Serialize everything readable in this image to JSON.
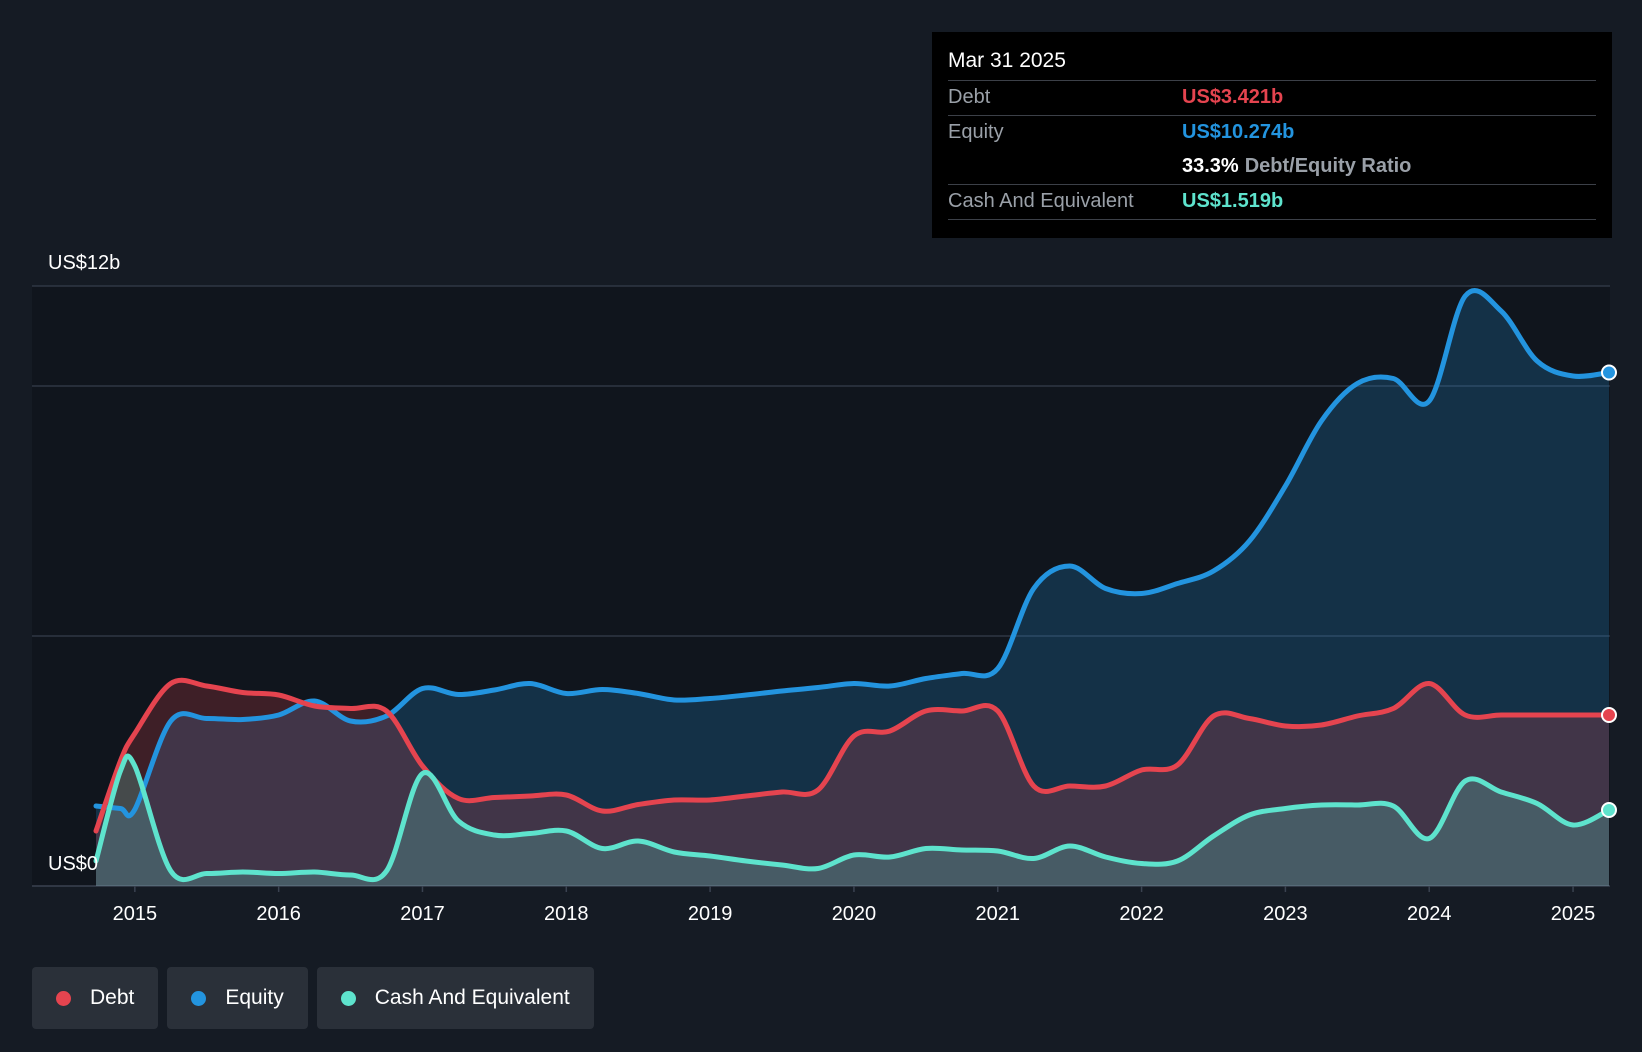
{
  "tooltip": {
    "date": "Mar 31 2025",
    "debt_label": "Debt",
    "debt_value": "US$3.421b",
    "equity_label": "Equity",
    "equity_value": "US$10.274b",
    "ratio_pct": "33.3%",
    "ratio_label": "Debt/Equity Ratio",
    "cash_label": "Cash And Equivalent",
    "cash_value": "US$1.519b"
  },
  "legend": {
    "debt": "Debt",
    "equity": "Equity",
    "cash": "Cash And Equivalent"
  },
  "colors": {
    "debt": "#e5444f",
    "equity": "#2394df",
    "cash": "#5ee3cd",
    "background": "#151b24"
  },
  "chart_data": {
    "type": "area",
    "title": "",
    "ylabel_top": "US$12b",
    "ylabel_bottom": "US$0",
    "ylim": [
      0,
      12
    ],
    "xlim": [
      2014.73,
      2025.25
    ],
    "x_ticks": [
      2015,
      2016,
      2017,
      2018,
      2019,
      2020,
      2021,
      2022,
      2023,
      2024,
      2025
    ],
    "x_tick_labels": [
      "2015",
      "2016",
      "2017",
      "2018",
      "2019",
      "2020",
      "2021",
      "2022",
      "2023",
      "2024",
      "2025"
    ],
    "gridlines": [
      0,
      5,
      10,
      12
    ],
    "series": [
      {
        "name": "Equity",
        "key": "equity",
        "points": [
          [
            2014.73,
            1.6
          ],
          [
            2014.9,
            1.55
          ],
          [
            2015.0,
            1.53
          ],
          [
            2015.25,
            3.3
          ],
          [
            2015.5,
            3.35
          ],
          [
            2015.75,
            3.33
          ],
          [
            2016.0,
            3.42
          ],
          [
            2016.25,
            3.7
          ],
          [
            2016.5,
            3.3
          ],
          [
            2016.75,
            3.4
          ],
          [
            2017.0,
            3.95
          ],
          [
            2017.25,
            3.83
          ],
          [
            2017.5,
            3.92
          ],
          [
            2017.75,
            4.05
          ],
          [
            2018.0,
            3.85
          ],
          [
            2018.25,
            3.93
          ],
          [
            2018.5,
            3.85
          ],
          [
            2018.75,
            3.72
          ],
          [
            2019.0,
            3.75
          ],
          [
            2019.25,
            3.82
          ],
          [
            2019.5,
            3.9
          ],
          [
            2019.75,
            3.97
          ],
          [
            2020.0,
            4.05
          ],
          [
            2020.25,
            4.0
          ],
          [
            2020.5,
            4.15
          ],
          [
            2020.75,
            4.25
          ],
          [
            2021.0,
            4.35
          ],
          [
            2021.25,
            5.95
          ],
          [
            2021.5,
            6.4
          ],
          [
            2021.75,
            5.95
          ],
          [
            2022.0,
            5.85
          ],
          [
            2022.25,
            6.05
          ],
          [
            2022.5,
            6.3
          ],
          [
            2022.75,
            6.9
          ],
          [
            2023.0,
            8.0
          ],
          [
            2023.25,
            9.3
          ],
          [
            2023.5,
            10.05
          ],
          [
            2023.75,
            10.15
          ],
          [
            2024.0,
            9.7
          ],
          [
            2024.25,
            11.8
          ],
          [
            2024.5,
            11.5
          ],
          [
            2024.75,
            10.5
          ],
          [
            2025.0,
            10.2
          ],
          [
            2025.25,
            10.27
          ]
        ]
      },
      {
        "name": "Debt",
        "key": "debt",
        "points": [
          [
            2014.73,
            1.1
          ],
          [
            2014.9,
            2.5
          ],
          [
            2015.0,
            3.05
          ],
          [
            2015.25,
            4.05
          ],
          [
            2015.5,
            4.0
          ],
          [
            2015.75,
            3.87
          ],
          [
            2016.0,
            3.82
          ],
          [
            2016.25,
            3.6
          ],
          [
            2016.5,
            3.55
          ],
          [
            2016.75,
            3.5
          ],
          [
            2017.0,
            2.4
          ],
          [
            2017.25,
            1.75
          ],
          [
            2017.5,
            1.77
          ],
          [
            2017.75,
            1.8
          ],
          [
            2018.0,
            1.82
          ],
          [
            2018.25,
            1.5
          ],
          [
            2018.5,
            1.63
          ],
          [
            2018.75,
            1.72
          ],
          [
            2019.0,
            1.72
          ],
          [
            2019.25,
            1.8
          ],
          [
            2019.5,
            1.88
          ],
          [
            2019.75,
            1.92
          ],
          [
            2020.0,
            3.0
          ],
          [
            2020.25,
            3.1
          ],
          [
            2020.5,
            3.5
          ],
          [
            2020.75,
            3.5
          ],
          [
            2021.0,
            3.5
          ],
          [
            2021.25,
            2.0
          ],
          [
            2021.5,
            2.0
          ],
          [
            2021.75,
            2.0
          ],
          [
            2022.0,
            2.32
          ],
          [
            2022.25,
            2.42
          ],
          [
            2022.5,
            3.4
          ],
          [
            2022.75,
            3.35
          ],
          [
            2023.0,
            3.2
          ],
          [
            2023.25,
            3.22
          ],
          [
            2023.5,
            3.4
          ],
          [
            2023.75,
            3.55
          ],
          [
            2024.0,
            4.05
          ],
          [
            2024.25,
            3.42
          ],
          [
            2024.5,
            3.42
          ],
          [
            2024.75,
            3.42
          ],
          [
            2025.0,
            3.42
          ],
          [
            2025.25,
            3.42
          ]
        ]
      },
      {
        "name": "Cash And Equivalent",
        "key": "cash",
        "points": [
          [
            2014.73,
            0.5
          ],
          [
            2014.9,
            2.3
          ],
          [
            2015.0,
            2.4
          ],
          [
            2015.25,
            0.3
          ],
          [
            2015.5,
            0.25
          ],
          [
            2015.75,
            0.28
          ],
          [
            2016.0,
            0.25
          ],
          [
            2016.25,
            0.28
          ],
          [
            2016.5,
            0.22
          ],
          [
            2016.75,
            0.3
          ],
          [
            2017.0,
            2.25
          ],
          [
            2017.25,
            1.3
          ],
          [
            2017.5,
            1.02
          ],
          [
            2017.75,
            1.05
          ],
          [
            2018.0,
            1.1
          ],
          [
            2018.25,
            0.75
          ],
          [
            2018.5,
            0.9
          ],
          [
            2018.75,
            0.68
          ],
          [
            2019.0,
            0.6
          ],
          [
            2019.25,
            0.5
          ],
          [
            2019.5,
            0.42
          ],
          [
            2019.75,
            0.35
          ],
          [
            2020.0,
            0.62
          ],
          [
            2020.25,
            0.58
          ],
          [
            2020.5,
            0.75
          ],
          [
            2020.75,
            0.72
          ],
          [
            2021.0,
            0.7
          ],
          [
            2021.25,
            0.55
          ],
          [
            2021.5,
            0.8
          ],
          [
            2021.75,
            0.58
          ],
          [
            2022.0,
            0.45
          ],
          [
            2022.25,
            0.5
          ],
          [
            2022.5,
            1.0
          ],
          [
            2022.75,
            1.42
          ],
          [
            2023.0,
            1.55
          ],
          [
            2023.25,
            1.62
          ],
          [
            2023.5,
            1.62
          ],
          [
            2023.75,
            1.6
          ],
          [
            2024.0,
            0.95
          ],
          [
            2024.25,
            2.1
          ],
          [
            2024.5,
            1.88
          ],
          [
            2024.75,
            1.65
          ],
          [
            2025.0,
            1.22
          ],
          [
            2025.25,
            1.52
          ]
        ]
      }
    ]
  }
}
